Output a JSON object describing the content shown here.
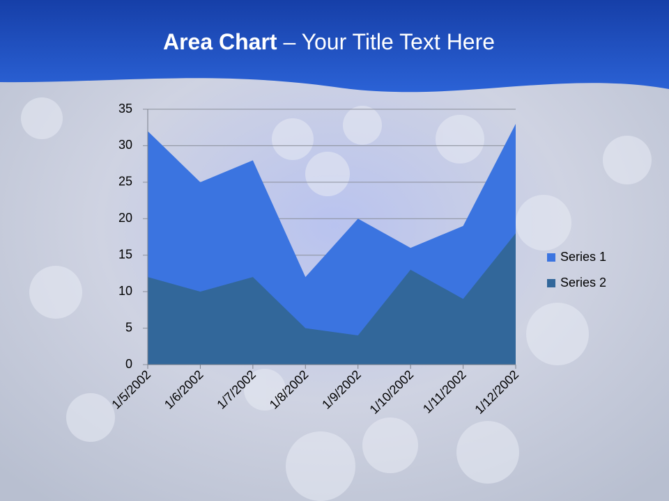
{
  "chart_data": {
    "type": "area",
    "title_emphasis": "Area Chart",
    "title": "– Your Title Text Here",
    "categories": [
      "1/5/2002",
      "1/6/2002",
      "1/7/2002",
      "1/8/2002",
      "1/9/2002",
      "1/10/2002",
      "1/11/2002",
      "1/12/2002"
    ],
    "series": [
      {
        "name": "Series 1",
        "color": "#3b74e0",
        "values": [
          32,
          25,
          28,
          12,
          20,
          16,
          19,
          33
        ]
      },
      {
        "name": "Series 2",
        "color": "#32679a",
        "values": [
          12,
          10,
          12,
          5,
          4,
          13,
          9,
          18
        ]
      }
    ],
    "ylim": [
      0,
      35
    ],
    "yticks": [
      0,
      5,
      10,
      15,
      20,
      25,
      30,
      35
    ],
    "grid": true,
    "legend": "right"
  }
}
